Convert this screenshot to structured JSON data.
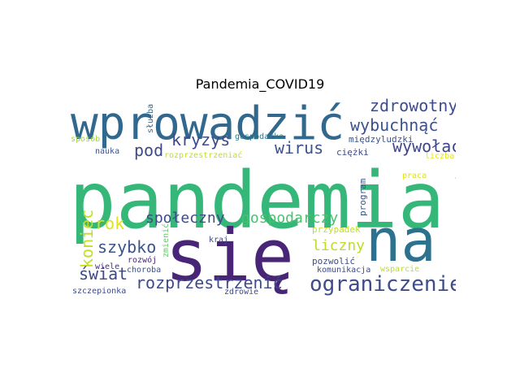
{
  "title": "Pandemia_COVID19",
  "words": [
    {
      "text": "pandemia",
      "color": "#35b779"
    },
    {
      "text": "się",
      "color": "#482576"
    },
    {
      "text": "na",
      "color": "#2c728e"
    },
    {
      "text": "wprowadzić",
      "color": "#31688e"
    },
    {
      "text": "ograniczenie",
      "color": "#3e4c8a"
    },
    {
      "text": "zdrowotny",
      "color": "#3e4c8a"
    },
    {
      "text": "wybuchnąć",
      "color": "#3b528b"
    },
    {
      "text": "wywołać",
      "color": "#3f4788"
    },
    {
      "text": "kryzys",
      "color": "#3e4a89"
    },
    {
      "text": "wirus",
      "color": "#3b528b"
    },
    {
      "text": "pod",
      "color": "#3e4a89"
    },
    {
      "text": "społeczny",
      "color": "#3e4a89"
    },
    {
      "text": "gospodarczy",
      "color": "#4ac16d"
    },
    {
      "text": "rok",
      "color": "#dde318"
    },
    {
      "text": "koniec",
      "color": "#c2df23"
    },
    {
      "text": "szybko",
      "color": "#3a548c"
    },
    {
      "text": "liczny",
      "color": "#bade28"
    },
    {
      "text": "zahamować",
      "color": "#3b528b"
    },
    {
      "text": "świat",
      "color": "#3e4989"
    },
    {
      "text": "rozprzestrzenić",
      "color": "#3e4a89"
    },
    {
      "text": "służba",
      "color": "#33638d"
    },
    {
      "text": "gospodarka",
      "color": "#2a788e"
    },
    {
      "text": "międzyludzki",
      "color": "#3b528b"
    },
    {
      "text": "sposób",
      "color": "#a0da39"
    },
    {
      "text": "nauka",
      "color": "#3b528b"
    },
    {
      "text": "rozprzestrzeniać",
      "color": "#c2df23"
    },
    {
      "text": "ciężki",
      "color": "#3e4a89"
    },
    {
      "text": "liczba",
      "color": "#e5e419"
    },
    {
      "text": "praca",
      "color": "#dde318"
    },
    {
      "text": "program",
      "color": "#39568c"
    },
    {
      "text": "przypadek",
      "color": "#c2df23"
    },
    {
      "text": "zmienić",
      "color": "#5ec962"
    },
    {
      "text": "kraj",
      "color": "#3e4a89"
    },
    {
      "text": "rozwój",
      "color": "#482878"
    },
    {
      "text": "pozwolić",
      "color": "#3e4a89"
    },
    {
      "text": "wiele",
      "color": "#46337e"
    },
    {
      "text": "choroba",
      "color": "#3b528b"
    },
    {
      "text": "komunikacja",
      "color": "#3e4a89"
    },
    {
      "text": "wsparcie",
      "color": "#bade28"
    },
    {
      "text": "szczepionka",
      "color": "#3e4a89"
    },
    {
      "text": "zdrowie",
      "color": "#3e4a89"
    }
  ]
}
